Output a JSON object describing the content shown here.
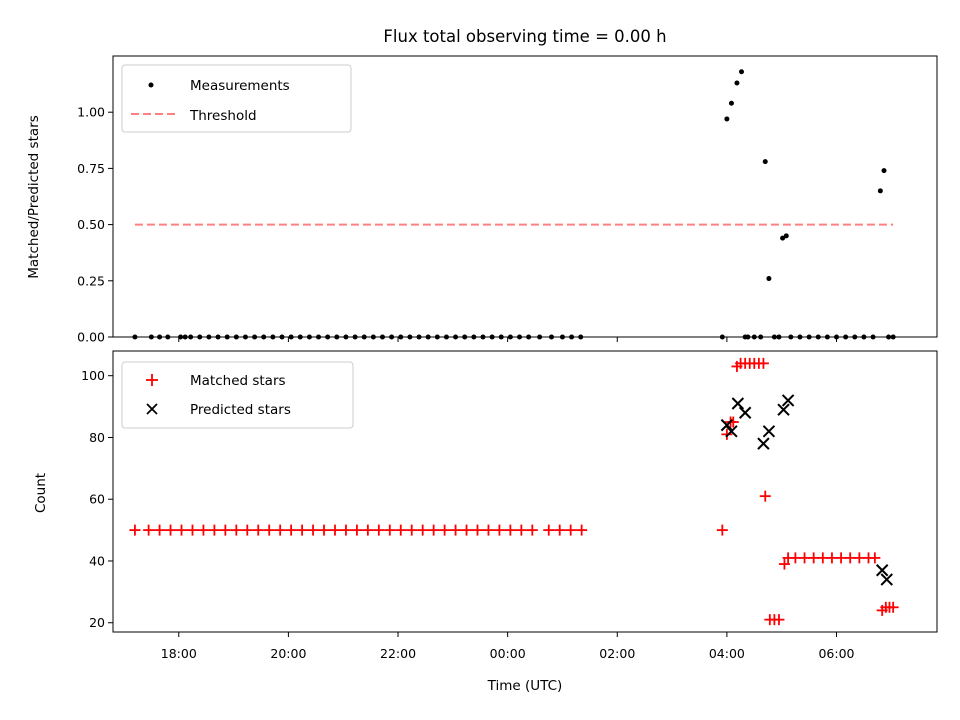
{
  "chart_data": [
    {
      "type": "scatter",
      "title": "Flux total observing time = 0.00 h",
      "xlabel": "",
      "ylabel": "Matched/Predicted stars",
      "xlim": [
        "2024-01-01T16:48",
        "2024-01-02T07:50"
      ],
      "ylim": [
        0,
        1.25
      ],
      "yticks": [
        "0.00",
        "0.25",
        "0.50",
        "0.75",
        "1.00"
      ],
      "legend": "top-left",
      "grid": false,
      "threshold": {
        "name": "Threshold",
        "value": 0.5,
        "x": [
          "2024-01-01T17:12",
          "2024-01-02T07:02"
        ],
        "color": "#ff8080"
      },
      "series": [
        {
          "name": "Measurements",
          "color": "#000000",
          "marker": "dot",
          "x": [
            "2024-01-01T17:12",
            "2024-01-01T17:30",
            "2024-01-01T17:39",
            "2024-01-01T17:48",
            "2024-01-01T18:02",
            "2024-01-01T18:07",
            "2024-01-01T18:13",
            "2024-01-01T18:23",
            "2024-01-01T18:33",
            "2024-01-01T18:43",
            "2024-01-01T18:53",
            "2024-01-01T19:03",
            "2024-01-01T19:13",
            "2024-01-01T19:23",
            "2024-01-01T19:33",
            "2024-01-01T19:43",
            "2024-01-01T19:53",
            "2024-01-01T20:03",
            "2024-01-01T20:13",
            "2024-01-01T20:23",
            "2024-01-01T20:33",
            "2024-01-01T20:43",
            "2024-01-01T20:53",
            "2024-01-01T21:03",
            "2024-01-01T21:13",
            "2024-01-01T21:23",
            "2024-01-01T21:33",
            "2024-01-01T21:43",
            "2024-01-01T21:53",
            "2024-01-01T22:03",
            "2024-01-01T22:13",
            "2024-01-01T22:23",
            "2024-01-01T22:33",
            "2024-01-01T22:43",
            "2024-01-01T22:53",
            "2024-01-01T23:03",
            "2024-01-01T23:13",
            "2024-01-01T23:23",
            "2024-01-01T23:33",
            "2024-01-01T23:43",
            "2024-01-01T23:53",
            "2024-01-02T00:03",
            "2024-01-02T00:13",
            "2024-01-02T00:23",
            "2024-01-02T00:35",
            "2024-01-02T00:48",
            "2024-01-02T01:00",
            "2024-01-02T01:10",
            "2024-01-02T01:20",
            "2024-01-02T03:55",
            "2024-01-02T04:00",
            "2024-01-02T04:05",
            "2024-01-02T04:11",
            "2024-01-02T04:16",
            "2024-01-02T04:20",
            "2024-01-02T04:23",
            "2024-01-02T04:30",
            "2024-01-02T04:37",
            "2024-01-02T04:42",
            "2024-01-02T04:46",
            "2024-01-02T04:52",
            "2024-01-02T04:57",
            "2024-01-02T05:01",
            "2024-01-02T05:05",
            "2024-01-02T05:10",
            "2024-01-02T05:20",
            "2024-01-02T05:30",
            "2024-01-02T05:40",
            "2024-01-02T05:50",
            "2024-01-02T06:00",
            "2024-01-02T06:10",
            "2024-01-02T06:20",
            "2024-01-02T06:30",
            "2024-01-02T06:40",
            "2024-01-02T06:48",
            "2024-01-02T06:52",
            "2024-01-02T06:57",
            "2024-01-02T07:02"
          ],
          "y": [
            0,
            0,
            0,
            0,
            0,
            0,
            0,
            0,
            0,
            0,
            0,
            0,
            0,
            0,
            0,
            0,
            0,
            0,
            0,
            0,
            0,
            0,
            0,
            0,
            0,
            0,
            0,
            0,
            0,
            0,
            0,
            0,
            0,
            0,
            0,
            0,
            0,
            0,
            0,
            0,
            0,
            0,
            0,
            0,
            0,
            0,
            0,
            0,
            0,
            0,
            0.97,
            1.04,
            1.13,
            1.18,
            0,
            0,
            0,
            0,
            0.78,
            0.26,
            0,
            0,
            0.44,
            0.45,
            0,
            0,
            0,
            0,
            0,
            0,
            0,
            0,
            0,
            0,
            0.65,
            0.74,
            0,
            0
          ]
        }
      ]
    },
    {
      "type": "scatter",
      "title": "",
      "xlabel": "Time (UTC)",
      "ylabel": "Count",
      "xlim": [
        "2024-01-01T16:48",
        "2024-01-02T07:50"
      ],
      "ylim": [
        17,
        108
      ],
      "yticks": [
        "20",
        "40",
        "60",
        "80",
        "100"
      ],
      "xticks": [
        "18:00",
        "20:00",
        "22:00",
        "00:00",
        "02:00",
        "04:00",
        "06:00"
      ],
      "legend": "top-left",
      "grid": false,
      "series": [
        {
          "name": "Matched stars",
          "color": "#ff0000",
          "marker": "plus",
          "x": [
            "2024-01-01T17:12",
            "2024-01-01T17:27",
            "2024-01-01T17:39",
            "2024-01-01T17:51",
            "2024-01-01T18:03",
            "2024-01-01T18:15",
            "2024-01-01T18:27",
            "2024-01-01T18:39",
            "2024-01-01T18:51",
            "2024-01-01T19:03",
            "2024-01-01T19:15",
            "2024-01-01T19:27",
            "2024-01-01T19:39",
            "2024-01-01T19:51",
            "2024-01-01T20:03",
            "2024-01-01T20:15",
            "2024-01-01T20:27",
            "2024-01-01T20:39",
            "2024-01-01T20:51",
            "2024-01-01T21:03",
            "2024-01-01T21:15",
            "2024-01-01T21:27",
            "2024-01-01T21:39",
            "2024-01-01T21:51",
            "2024-01-01T22:03",
            "2024-01-01T22:15",
            "2024-01-01T22:27",
            "2024-01-01T22:39",
            "2024-01-01T22:51",
            "2024-01-01T23:03",
            "2024-01-01T23:15",
            "2024-01-01T23:27",
            "2024-01-01T23:39",
            "2024-01-01T23:51",
            "2024-01-02T00:03",
            "2024-01-02T00:15",
            "2024-01-02T00:27",
            "2024-01-02T00:45",
            "2024-01-02T00:57",
            "2024-01-02T01:09",
            "2024-01-02T01:21",
            "2024-01-02T03:55",
            "2024-01-02T04:00",
            "2024-01-02T04:04",
            "2024-01-02T04:07",
            "2024-01-02T04:11",
            "2024-01-02T04:15",
            "2024-01-02T04:20",
            "2024-01-02T04:25",
            "2024-01-02T04:30",
            "2024-01-02T04:35",
            "2024-01-02T04:40",
            "2024-01-02T04:42",
            "2024-01-02T04:47",
            "2024-01-02T04:52",
            "2024-01-02T04:57",
            "2024-01-02T05:03",
            "2024-01-02T05:07",
            "2024-01-02T05:15",
            "2024-01-02T05:25",
            "2024-01-02T05:35",
            "2024-01-02T05:45",
            "2024-01-02T05:55",
            "2024-01-02T06:05",
            "2024-01-02T06:15",
            "2024-01-02T06:25",
            "2024-01-02T06:35",
            "2024-01-02T06:42",
            "2024-01-02T06:50",
            "2024-01-02T06:54",
            "2024-01-02T06:58",
            "2024-01-02T07:02"
          ],
          "y": [
            50,
            50,
            50,
            50,
            50,
            50,
            50,
            50,
            50,
            50,
            50,
            50,
            50,
            50,
            50,
            50,
            50,
            50,
            50,
            50,
            50,
            50,
            50,
            50,
            50,
            50,
            50,
            50,
            50,
            50,
            50,
            50,
            50,
            50,
            50,
            50,
            50,
            50,
            50,
            50,
            50,
            50,
            81,
            85,
            85,
            103,
            104,
            104,
            104,
            104,
            104,
            104,
            61,
            21,
            21,
            21,
            39,
            41,
            41,
            41,
            41,
            41,
            41,
            41,
            41,
            41,
            41,
            41,
            24,
            25,
            25,
            25
          ]
        },
        {
          "name": "Predicted stars",
          "color": "#000000",
          "marker": "x",
          "x": [
            "2024-01-02T04:00",
            "2024-01-02T04:05",
            "2024-01-02T04:12",
            "2024-01-02T04:20",
            "2024-01-02T04:40",
            "2024-01-02T04:46",
            "2024-01-02T05:02",
            "2024-01-02T05:07",
            "2024-01-02T06:50",
            "2024-01-02T06:55"
          ],
          "y": [
            84,
            82,
            91,
            88,
            78,
            82,
            89,
            92,
            37,
            34
          ]
        }
      ]
    }
  ]
}
